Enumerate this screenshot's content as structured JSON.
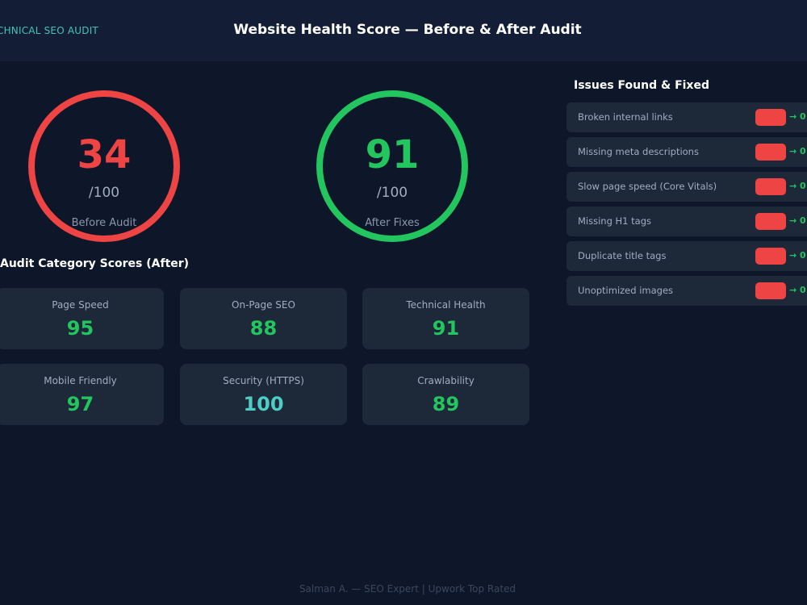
{
  "header": {
    "brand": "CHNICAL SEO AUDIT",
    "title": "Website Health Score — Before & After Audit"
  },
  "scores": {
    "before": {
      "value": "34",
      "max": "/100",
      "label": "Before Audit",
      "color": "#ef4444"
    },
    "after": {
      "value": "91",
      "max": "/100",
      "label": "After Fixes",
      "color": "#22c55e"
    }
  },
  "categories": {
    "title": "Audit Category Scores (After)",
    "items": [
      {
        "label": "Page Speed",
        "value": "95",
        "color": "#22c55e"
      },
      {
        "label": "On-Page SEO",
        "value": "88",
        "color": "#22c55e"
      },
      {
        "label": "Technical Health",
        "value": "91",
        "color": "#22c55e"
      },
      {
        "label": "Mobile Friendly",
        "value": "97",
        "color": "#22c55e"
      },
      {
        "label": "Security (HTTPS)",
        "value": "100",
        "color": "#4ecdc4"
      },
      {
        "label": "Crawlability",
        "value": "89",
        "color": "#22c55e"
      }
    ]
  },
  "issues": {
    "title": "Issues Found & Fixed",
    "items": [
      {
        "label": "Broken internal links",
        "fixed": "→ 0"
      },
      {
        "label": "Missing meta descriptions",
        "fixed": "→ 0"
      },
      {
        "label": "Slow page speed (Core Vitals)",
        "fixed": "→ 0"
      },
      {
        "label": "Missing H1 tags",
        "fixed": "→ 0"
      },
      {
        "label": "Duplicate title tags",
        "fixed": "→ 0"
      },
      {
        "label": "Unoptimized images",
        "fixed": "→ 0"
      }
    ]
  },
  "footer": {
    "text": "Salman A. — SEO Expert | Upwork Top Rated"
  }
}
